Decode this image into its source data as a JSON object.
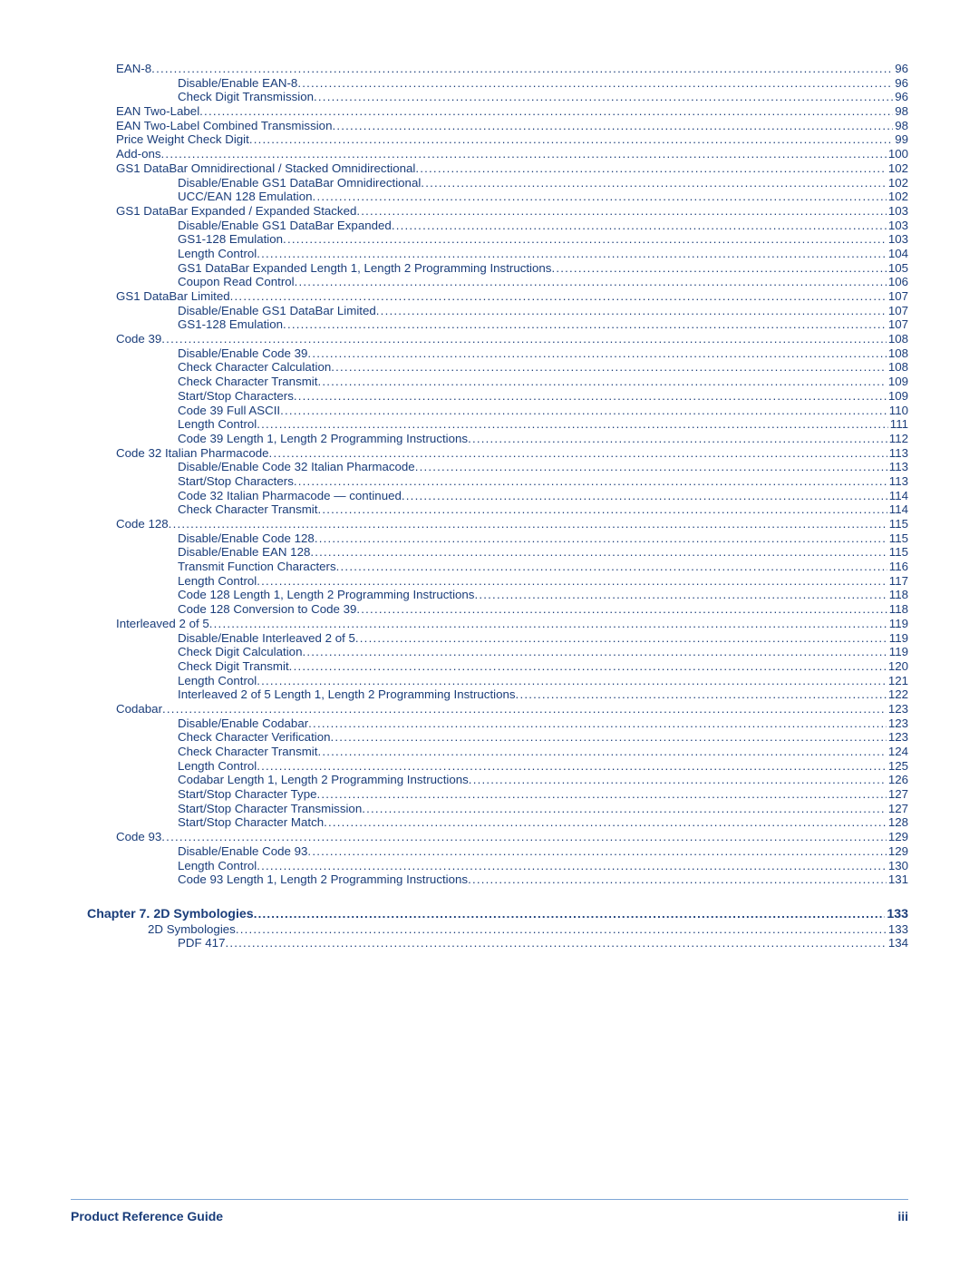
{
  "colors": {
    "text": "#1a3d7a",
    "background": "#ffffff",
    "rule": "#7ea6d6"
  },
  "typography": {
    "body_fontsize_pt": 10,
    "chapter_fontsize_pt": 11,
    "font_family": "Arial"
  },
  "toc": [
    {
      "title": "EAN-8",
      "page": "96",
      "level": 0
    },
    {
      "title": "Disable/Enable EAN-8",
      "page": "96",
      "level": 2
    },
    {
      "title": "Check Digit Transmission",
      "page": "96",
      "level": 2
    },
    {
      "title": "EAN Two-Label",
      "page": "98",
      "level": 0
    },
    {
      "title": "EAN Two-Label Combined Transmission",
      "page": "98",
      "level": 0
    },
    {
      "title": "Price Weight Check Digit",
      "page": "99",
      "level": 0
    },
    {
      "title": "Add-ons",
      "page": "100",
      "level": 0
    },
    {
      "title": "GS1 DataBar Omnidirectional / Stacked Omnidirectional",
      "page": "102",
      "level": 0
    },
    {
      "title": "Disable/Enable GS1 DataBar Omnidirectional",
      "page": "102",
      "level": 2
    },
    {
      "title": "UCC/EAN 128 Emulation",
      "page": "102",
      "level": 2
    },
    {
      "title": "GS1 DataBar Expanded / Expanded Stacked",
      "page": "103",
      "level": 0
    },
    {
      "title": "Disable/Enable GS1 DataBar Expanded",
      "page": "103",
      "level": 2
    },
    {
      "title": "GS1-128 Emulation",
      "page": "103",
      "level": 2
    },
    {
      "title": "Length Control",
      "page": "104",
      "level": 2
    },
    {
      "title": "GS1 DataBar Expanded Length 1, Length 2 Programming Instructions",
      "page": "105",
      "level": 2
    },
    {
      "title": "Coupon Read Control",
      "page": "106",
      "level": 2
    },
    {
      "title": "GS1 DataBar Limited",
      "page": "107",
      "level": 0
    },
    {
      "title": "Disable/Enable GS1 DataBar Limited",
      "page": "107",
      "level": 2
    },
    {
      "title": "GS1-128 Emulation",
      "page": "107",
      "level": 2
    },
    {
      "title": "Code 39",
      "page": "108",
      "level": 0
    },
    {
      "title": "Disable/Enable Code 39",
      "page": "108",
      "level": 2
    },
    {
      "title": "Check Character Calculation",
      "page": "108",
      "level": 2
    },
    {
      "title": "Check Character Transmit",
      "page": "109",
      "level": 2
    },
    {
      "title": "Start/Stop Characters",
      "page": "109",
      "level": 2
    },
    {
      "title": "Code 39 Full ASCII",
      "page": "110",
      "level": 2
    },
    {
      "title": "Length Control",
      "page": "111",
      "level": 2
    },
    {
      "title": "Code 39 Length 1, Length 2 Programming Instructions",
      "page": "112",
      "level": 2
    },
    {
      "title": "Code 32 Italian Pharmacode",
      "page": "113",
      "level": 0
    },
    {
      "title": "Disable/Enable Code 32 Italian Pharmacode",
      "page": "113",
      "level": 2
    },
    {
      "title": "Start/Stop Characters",
      "page": "113",
      "level": 2
    },
    {
      "title": "Code 32 Italian Pharmacode — continued",
      "page": "114",
      "level": 2
    },
    {
      "title": "Check Character Transmit",
      "page": "114",
      "level": 2
    },
    {
      "title": "Code 128",
      "page": "115",
      "level": 0
    },
    {
      "title": "Disable/Enable Code 128",
      "page": "115",
      "level": 2
    },
    {
      "title": "Disable/Enable EAN 128",
      "page": "115",
      "level": 2
    },
    {
      "title": "Transmit Function Characters",
      "page": "116",
      "level": 2
    },
    {
      "title": "Length Control",
      "page": "117",
      "level": 2
    },
    {
      "title": "Code 128 Length 1, Length 2 Programming Instructions",
      "page": "118",
      "level": 2
    },
    {
      "title": "Code 128 Conversion to Code 39",
      "page": "118",
      "level": 2
    },
    {
      "title": "Interleaved 2 of 5",
      "page": "119",
      "level": 0
    },
    {
      "title": "Disable/Enable Interleaved 2 of 5",
      "page": "119",
      "level": 2
    },
    {
      "title": "Check Digit Calculation",
      "page": "119",
      "level": 2
    },
    {
      "title": "Check Digit Transmit",
      "page": "120",
      "level": 2
    },
    {
      "title": "Length Control",
      "page": "121",
      "level": 2
    },
    {
      "title": "Interleaved 2 of 5 Length 1, Length 2 Programming Instructions",
      "page": "122",
      "level": 2
    },
    {
      "title": "Codabar",
      "page": "123",
      "level": 0
    },
    {
      "title": "Disable/Enable Codabar",
      "page": "123",
      "level": 2
    },
    {
      "title": "Check Character Verification",
      "page": "123",
      "level": 2
    },
    {
      "title": "Check Character Transmit",
      "page": "124",
      "level": 2
    },
    {
      "title": "Length Control",
      "page": "125",
      "level": 2
    },
    {
      "title": "Codabar Length 1, Length 2 Programming Instructions",
      "page": "126",
      "level": 2
    },
    {
      "title": "Start/Stop Character Type",
      "page": "127",
      "level": 2
    },
    {
      "title": "Start/Stop Character Transmission",
      "page": "127",
      "level": 2
    },
    {
      "title": "Start/Stop Character Match",
      "page": "128",
      "level": 2
    },
    {
      "title": "Code 93",
      "page": "129",
      "level": 0
    },
    {
      "title": "Disable/Enable Code 93",
      "page": "129",
      "level": 2
    },
    {
      "title": "Length Control",
      "page": "130",
      "level": 2
    },
    {
      "title": "Code 93 Length 1, Length 2 Programming Instructions",
      "page": "131",
      "level": 2
    },
    {
      "title": "Chapter 7. 2D Symbologies",
      "page": "133",
      "level": "chapter"
    },
    {
      "title": "2D Symbologies",
      "page": "133",
      "level": 1
    },
    {
      "title": "PDF 417",
      "page": "134",
      "level": 2
    }
  ],
  "footer": {
    "left": "Product Reference Guide",
    "right": "iii"
  }
}
